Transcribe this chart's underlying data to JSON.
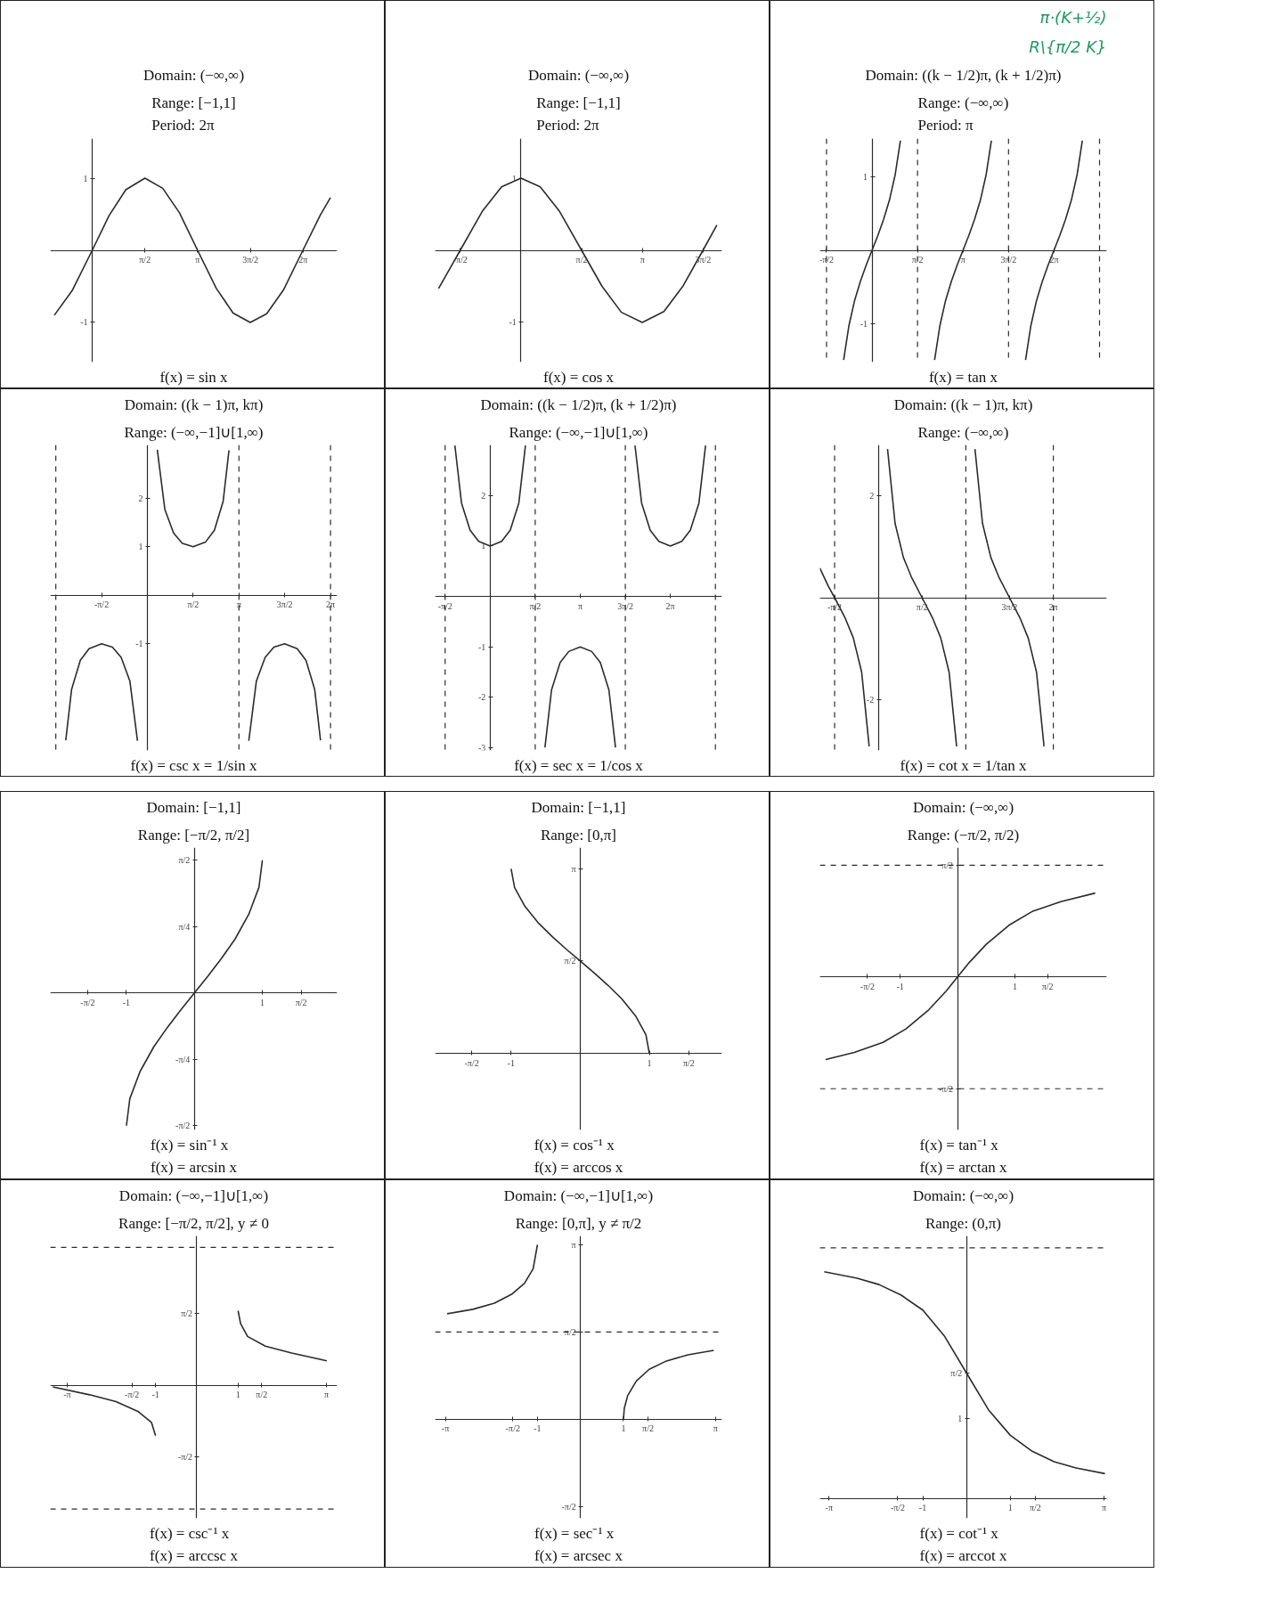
{
  "chart_data": [
    {
      "type": "line",
      "title": "Domain: (−∞,∞)",
      "subtitle": "Range: [−1,1]\nPeriod: 2π",
      "xlabel": "f(x) = sin x",
      "xlim": [
        -1.25,
        7.3
      ],
      "ylim": [
        -1.55,
        1.55
      ],
      "xticks": [
        {
          "value": 1.5708,
          "label": "π/2"
        },
        {
          "value": 3.1416,
          "label": "π"
        },
        {
          "value": 4.7124,
          "label": "3π/2"
        },
        {
          "value": 6.2832,
          "label": "2π"
        }
      ],
      "yticks": [
        1,
        -1
      ],
      "series": [
        {
          "color": "#2b2b2b",
          "x": [
            -1.13,
            -0.6,
            0,
            0.5,
            1.0,
            1.57,
            2.1,
            2.6,
            3.14,
            3.7,
            4.2,
            4.71,
            5.2,
            5.7,
            6.28,
            6.8,
            7.1
          ],
          "values": [
            -0.9,
            -0.56,
            0,
            0.48,
            0.84,
            1,
            0.86,
            0.52,
            0,
            -0.53,
            -0.87,
            -1,
            -0.88,
            -0.55,
            0,
            0.49,
            0.73
          ]
        }
      ]
    },
    {
      "type": "line",
      "title": "Domain: (−∞,∞)",
      "subtitle": "Range: [−1,1]\nPeriod: 2π",
      "xlabel": "f(x) = cos x",
      "xlim": [
        -2.22,
        5.2
      ],
      "ylim": [
        -1.55,
        1.55
      ],
      "xticks": [
        {
          "value": -1.5708,
          "label": "-π/2"
        },
        {
          "value": 1.5708,
          "label": "π/2"
        },
        {
          "value": 3.1416,
          "label": "π"
        },
        {
          "value": 4.7124,
          "label": "3π/2"
        }
      ],
      "yticks": [
        1,
        -1
      ],
      "series": [
        {
          "color": "#2b2b2b",
          "x": [
            -2.13,
            -1.57,
            -1.0,
            -0.5,
            0,
            0.5,
            1.0,
            1.57,
            2.1,
            2.6,
            3.14,
            3.7,
            4.2,
            4.71,
            5.07
          ],
          "values": [
            -0.53,
            0,
            0.54,
            0.88,
            1,
            0.88,
            0.54,
            0,
            -0.5,
            -0.86,
            -1,
            -0.85,
            -0.49,
            0,
            0.35
          ]
        }
      ]
    },
    {
      "type": "line",
      "title": "Domain: ((k − 1/2)π, (k + 1/2)π)",
      "subtitle": "Range: (−∞,∞)\nPeriod: π",
      "xlabel": "f(x) = tan x",
      "xlim": [
        -1.8,
        8.1
      ],
      "ylim": [
        -1.52,
        1.52
      ],
      "xticks": [
        {
          "value": -1.5708,
          "label": "-π/2"
        },
        {
          "value": 1.5708,
          "label": "π/2"
        },
        {
          "value": 3.1416,
          "label": "π"
        },
        {
          "value": 4.7124,
          "label": "3π/2"
        },
        {
          "value": 6.2832,
          "label": "2π"
        }
      ],
      "yticks": [
        1,
        -1
      ],
      "ref_lines": [
        {
          "axis": "x",
          "value": -1.5708,
          "line_style": "dashed"
        },
        {
          "axis": "x",
          "value": 1.5708,
          "line_style": "dashed"
        },
        {
          "axis": "x",
          "value": 4.7124,
          "line_style": "dashed"
        },
        {
          "axis": "x",
          "value": 7.854,
          "line_style": "dashed"
        }
      ],
      "annotations": [
        "π·(K+½)",
        "R\\{π/2 K}"
      ],
      "series": [
        {
          "color": "#2b2b2b",
          "x": [
            -0.98,
            -0.8,
            -0.6,
            -0.4,
            -0.2,
            0,
            0.2,
            0.4,
            0.6,
            0.8,
            0.98
          ],
          "values": [
            -1.49,
            -1.03,
            -0.68,
            -0.42,
            -0.2,
            0,
            0.2,
            0.42,
            0.68,
            1.03,
            1.49
          ]
        },
        {
          "color": "#2b2b2b",
          "x": [
            2.16,
            2.34,
            2.54,
            2.74,
            2.94,
            3.14,
            3.34,
            3.54,
            3.74,
            3.94,
            4.12
          ],
          "values": [
            -1.49,
            -1.03,
            -0.68,
            -0.42,
            -0.2,
            0,
            0.2,
            0.42,
            0.68,
            1.03,
            1.49
          ]
        },
        {
          "color": "#2b2b2b",
          "x": [
            5.3,
            5.48,
            5.68,
            5.88,
            6.08,
            6.28,
            6.48,
            6.68,
            6.88,
            7.08,
            7.26
          ],
          "values": [
            -1.49,
            -1.03,
            -0.68,
            -0.42,
            -0.2,
            0,
            0.2,
            0.42,
            0.68,
            1.03,
            1.49
          ]
        }
      ]
    },
    {
      "type": "line",
      "title": "Domain: ((k − 1)π, kπ)",
      "subtitle": "Range: (−∞,−1]∪[1,∞)",
      "xlabel": "f(x) = csc x = 1/sin x",
      "xlim": [
        -3.33,
        6.51
      ],
      "ylim": [
        -3.2,
        3.1
      ],
      "xticks": [
        {
          "value": -1.5708,
          "label": "-π/2"
        },
        {
          "value": 1.5708,
          "label": "π/2"
        },
        {
          "value": 3.1416,
          "label": "π"
        },
        {
          "value": 4.7124,
          "label": "3π/2"
        },
        {
          "value": 6.2832,
          "label": "2π"
        }
      ],
      "yticks": [
        2,
        1,
        -1
      ],
      "ref_lines": [
        {
          "axis": "x",
          "value": -3.1416,
          "line_style": "dashed"
        },
        {
          "axis": "x",
          "value": 3.1416,
          "line_style": "dashed"
        },
        {
          "axis": "x",
          "value": 6.2832,
          "line_style": "dashed"
        }
      ],
      "series": [
        {
          "color": "#2b2b2b",
          "x": [
            -2.8,
            -2.6,
            -2.3,
            -2.0,
            -1.57,
            -1.2,
            -0.9,
            -0.6,
            -0.34
          ],
          "values": [
            -2.99,
            -1.94,
            -1.34,
            -1.1,
            -1,
            -1.07,
            -1.28,
            -1.77,
            -3.0
          ]
        },
        {
          "color": "#2b2b2b",
          "x": [
            0.34,
            0.6,
            0.9,
            1.2,
            1.57,
            2.0,
            2.3,
            2.6,
            2.8
          ],
          "values": [
            3.0,
            1.77,
            1.28,
            1.07,
            1,
            1.1,
            1.34,
            1.94,
            2.99
          ]
        },
        {
          "color": "#2b2b2b",
          "x": [
            3.48,
            3.74,
            4.04,
            4.34,
            4.71,
            5.14,
            5.44,
            5.74,
            5.94
          ],
          "values": [
            -3.0,
            -1.77,
            -1.28,
            -1.07,
            -1,
            -1.1,
            -1.34,
            -1.94,
            -2.99
          ]
        }
      ]
    },
    {
      "type": "line",
      "title": "Domain: ((k − 1/2)π, (k + 1/2)π)",
      "subtitle": "Range: (−∞,−1]∪[1,∞)",
      "xlabel": "f(x) = sec x = 1/cos x",
      "xlim": [
        -1.92,
        8.08
      ],
      "ylim": [
        -3.05,
        3.0
      ],
      "xticks": [
        {
          "value": -1.5708,
          "label": "-π/2"
        },
        {
          "value": 1.5708,
          "label": "π/2"
        },
        {
          "value": 3.1416,
          "label": "π"
        },
        {
          "value": 4.7124,
          "label": "3π/2"
        },
        {
          "value": 6.2832,
          "label": "2π"
        }
      ],
      "yticks": [
        2,
        1,
        -1,
        -2,
        -3
      ],
      "ref_lines": [
        {
          "axis": "x",
          "value": -1.5708,
          "line_style": "dashed"
        },
        {
          "axis": "x",
          "value": 1.5708,
          "line_style": "dashed"
        },
        {
          "axis": "x",
          "value": 4.7124,
          "line_style": "dashed"
        },
        {
          "axis": "x",
          "value": 7.854,
          "line_style": "dashed"
        }
      ],
      "series": [
        {
          "color": "#2b2b2b",
          "x": [
            -1.23,
            -1.0,
            -0.7,
            -0.4,
            0,
            0.4,
            0.7,
            1.0,
            1.23
          ],
          "values": [
            2.99,
            1.85,
            1.31,
            1.09,
            1,
            1.09,
            1.31,
            1.85,
            2.99
          ]
        },
        {
          "color": "#2b2b2b",
          "x": [
            1.91,
            2.14,
            2.44,
            2.74,
            3.14,
            3.54,
            3.84,
            4.14,
            4.37
          ],
          "values": [
            -2.99,
            -1.85,
            -1.31,
            -1.09,
            -1,
            -1.09,
            -1.31,
            -1.85,
            -2.99
          ]
        },
        {
          "color": "#2b2b2b",
          "x": [
            5.05,
            5.28,
            5.58,
            5.88,
            6.28,
            6.68,
            6.98,
            7.28,
            7.51
          ],
          "values": [
            2.99,
            1.85,
            1.31,
            1.09,
            1,
            1.09,
            1.31,
            1.85,
            2.99
          ]
        }
      ]
    },
    {
      "type": "line",
      "title": "Domain: ((k − 1)π, kπ)",
      "subtitle": "Range: (−∞,∞)",
      "xlabel": "f(x) = cot x = 1/tan x",
      "xlim": [
        -2.1,
        8.2
      ],
      "ylim": [
        -3.0,
        3.0
      ],
      "xticks": [
        {
          "value": -1.5708,
          "label": "-π/2"
        },
        {
          "value": 1.5708,
          "label": "π/2"
        },
        {
          "value": 4.7124,
          "label": "3π/2"
        },
        {
          "value": 6.2832,
          "label": "2π"
        }
      ],
      "yticks": [
        2,
        -2
      ],
      "ref_lines": [
        {
          "axis": "x",
          "value": -1.5708,
          "line_style": "dashed"
        },
        {
          "axis": "x",
          "value": 3.1416,
          "line_style": "dashed"
        },
        {
          "axis": "x",
          "value": 6.2832,
          "line_style": "dashed"
        }
      ],
      "series": [
        {
          "color": "#2b2b2b",
          "x": [
            -2.1,
            -1.8,
            -1.57,
            -1.2,
            -0.9,
            -0.6,
            -0.33
          ],
          "values": [
            0.58,
            0.23,
            0,
            -0.39,
            -0.79,
            -1.46,
            -2.92
          ]
        },
        {
          "color": "#2b2b2b",
          "x": [
            0.33,
            0.6,
            0.9,
            1.2,
            1.57,
            1.94,
            2.24,
            2.54,
            2.81
          ],
          "values": [
            2.92,
            1.46,
            0.79,
            0.39,
            0,
            -0.39,
            -0.79,
            -1.46,
            -2.92
          ]
        },
        {
          "color": "#2b2b2b",
          "x": [
            3.47,
            3.74,
            4.04,
            4.34,
            4.71,
            5.08,
            5.38,
            5.68,
            5.95
          ],
          "values": [
            2.92,
            1.46,
            0.79,
            0.39,
            0,
            -0.39,
            -0.79,
            -1.46,
            -2.92
          ]
        }
      ]
    },
    {
      "type": "line",
      "title": "Domain: [−1,1]",
      "subtitle": "Range: [−π/2, π/2]",
      "xlabel": "f(x) = sin⁻¹ x\nf(x) = arcsin x",
      "xlim": [
        -2.12,
        2.1
      ],
      "ylim": [
        -1.62,
        1.72
      ],
      "xticks": [
        {
          "value": -1.5708,
          "label": "-π/2"
        },
        -1,
        1,
        {
          "value": 1.5708,
          "label": "π/2"
        }
      ],
      "yticks": [
        {
          "value": 1.5708,
          "label": "π/2"
        },
        {
          "value": 0.7854,
          "label": "π/4"
        },
        {
          "value": -0.7854,
          "label": "-π/4"
        },
        {
          "value": -1.5708,
          "label": "-π/2"
        }
      ],
      "series": [
        {
          "color": "#2b2b2b",
          "x": [
            -1,
            -0.95,
            -0.8,
            -0.6,
            -0.4,
            -0.2,
            0,
            0.2,
            0.4,
            0.6,
            0.8,
            0.95,
            1
          ],
          "values": [
            -1.57,
            -1.25,
            -0.93,
            -0.64,
            -0.41,
            -0.2,
            0,
            0.2,
            0.41,
            0.64,
            0.93,
            1.25,
            1.57
          ]
        }
      ]
    },
    {
      "type": "line",
      "title": "Domain: [−1,1]",
      "subtitle": "Range: [0,π]",
      "xlabel": "f(x) = cos⁻¹ x\nf(x) = arccos x",
      "xlim": [
        -2.1,
        2.05
      ],
      "ylim": [
        -1.3,
        3.5
      ],
      "xticks": [
        {
          "value": -1.5708,
          "label": "-π/2"
        },
        -1,
        1,
        {
          "value": 1.5708,
          "label": "π/2"
        }
      ],
      "yticks": [
        {
          "value": 1.5708,
          "label": "π/2"
        },
        {
          "value": 3.1416,
          "label": "π"
        }
      ],
      "series": [
        {
          "color": "#2b2b2b",
          "x": [
            -1,
            -0.95,
            -0.8,
            -0.6,
            -0.4,
            -0.2,
            0,
            0.2,
            0.4,
            0.6,
            0.8,
            0.95,
            1
          ],
          "values": [
            3.14,
            2.82,
            2.5,
            2.21,
            1.98,
            1.77,
            1.57,
            1.37,
            1.16,
            0.93,
            0.64,
            0.32,
            0
          ]
        }
      ]
    },
    {
      "type": "line",
      "title": "Domain: (−∞,∞)",
      "subtitle": "Range: (−π/2, π/2)",
      "xlabel": "f(x) = tan⁻¹ x\nf(x) = arctan x",
      "xlim": [
        -2.4,
        2.6
      ],
      "ylim": [
        -2.15,
        1.82
      ],
      "xticks": [
        {
          "value": -1.5708,
          "label": "-π/2"
        },
        -1,
        1,
        {
          "value": 1.5708,
          "label": "π/2"
        }
      ],
      "yticks": [
        {
          "value": 1.5708,
          "label": "π/2"
        },
        {
          "value": -1.5708,
          "label": "-π/2"
        }
      ],
      "ref_lines": [
        {
          "axis": "y",
          "value": 1.5708,
          "line_style": "dashed"
        },
        {
          "axis": "y",
          "value": -1.5708,
          "line_style": "dashed"
        }
      ],
      "series": [
        {
          "color": "#2b2b2b",
          "x": [
            -2.3,
            -1.8,
            -1.3,
            -0.9,
            -0.5,
            -0.2,
            0,
            0.2,
            0.5,
            0.9,
            1.3,
            1.8,
            2.4
          ],
          "values": [
            -1.16,
            -1.06,
            -0.92,
            -0.73,
            -0.46,
            -0.2,
            0,
            0.2,
            0.46,
            0.73,
            0.92,
            1.06,
            1.18
          ]
        }
      ]
    },
    {
      "type": "line",
      "title": "Domain: (−∞,−1]∪[1,∞)",
      "subtitle": "Range: [−π/2, π/2], y ≠ 0",
      "xlabel": "f(x) = csc⁻¹ x\nf(x) = arccsc x",
      "xlim": [
        -3.55,
        3.4
      ],
      "ylim": [
        -2.9,
        3.25
      ],
      "xticks": [
        {
          "value": -3.1416,
          "label": "-π"
        },
        {
          "value": -1.5708,
          "label": "-π/2"
        },
        -1,
        1,
        {
          "value": 1.5708,
          "label": "π/2"
        },
        {
          "value": 3.1416,
          "label": "π"
        }
      ],
      "yticks": [
        {
          "value": 1.5708,
          "label": "π/2"
        },
        {
          "value": -1.5708,
          "label": "-π/2"
        }
      ],
      "ref_lines": [
        {
          "axis": "y",
          "value": 3.0,
          "line_style": "dashed"
        },
        {
          "axis": "y",
          "value": -2.7,
          "line_style": "dashed"
        }
      ],
      "series": [
        {
          "color": "#2b2b2b",
          "x": [
            -3.49,
            -2.6,
            -1.96,
            -1.43,
            -1.1,
            -1.0
          ],
          "values": [
            -0.04,
            -0.21,
            -0.36,
            -0.57,
            -0.81,
            -1.1
          ]
        },
        {
          "color": "#2b2b2b",
          "x": [
            1.0,
            1.06,
            1.23,
            1.66,
            2.3,
            3.15
          ],
          "values": [
            1.62,
            1.34,
            1.06,
            0.85,
            0.7,
            0.53
          ]
        }
      ]
    },
    {
      "type": "line",
      "title": "Domain: (−∞,−1]∪[1,∞)",
      "subtitle": "Range: [0,π], y ≠ π/2",
      "xlabel": "f(x) = sec⁻¹ x\nf(x) = arcsec x",
      "xlim": [
        -3.38,
        3.29
      ],
      "ylim": [
        -1.78,
        3.3
      ],
      "xticks": [
        {
          "value": -3.1416,
          "label": "-π"
        },
        {
          "value": -1.5708,
          "label": "-π/2"
        },
        -1,
        1,
        {
          "value": 1.5708,
          "label": "π/2"
        },
        {
          "value": 3.1416,
          "label": "π"
        }
      ],
      "yticks": [
        {
          "value": 3.1416,
          "label": "π"
        },
        {
          "value": 1.5708,
          "label": "π/2"
        },
        {
          "value": -1.5708,
          "label": "-π/2"
        }
      ],
      "ref_lines": [
        {
          "axis": "y",
          "value": 1.5708,
          "line_style": "dashed"
        }
      ],
      "series": [
        {
          "color": "#2b2b2b",
          "x": [
            -3.1,
            -2.5,
            -2.0,
            -1.6,
            -1.3,
            -1.1,
            -1.0
          ],
          "values": [
            1.9,
            1.98,
            2.09,
            2.25,
            2.45,
            2.71,
            3.14
          ]
        },
        {
          "color": "#2b2b2b",
          "x": [
            1.0,
            1.02,
            1.1,
            1.3,
            1.6,
            2.0,
            2.5,
            3.1
          ],
          "values": [
            0,
            0.2,
            0.43,
            0.69,
            0.9,
            1.05,
            1.16,
            1.24
          ]
        }
      ]
    },
    {
      "type": "line",
      "title": "Domain: (−∞,∞)",
      "subtitle": "Range: (0,π)",
      "xlabel": "f(x) = cot⁻¹ x\nf(x) = arccot x",
      "xlim": [
        -3.35,
        3.2
      ],
      "ylim": [
        -0.25,
        3.29
      ],
      "xticks": [
        {
          "value": -3.1416,
          "label": "-π"
        },
        {
          "value": -1.5708,
          "label": "-π/2"
        },
        -1,
        1,
        {
          "value": 1.5708,
          "label": "π/2"
        },
        {
          "value": 3.1416,
          "label": "π"
        }
      ],
      "yticks": [
        {
          "value": 1.5708,
          "label": "π/2"
        },
        1
      ],
      "ref_lines": [
        {
          "axis": "y",
          "value": 3.1416,
          "line_style": "dashed"
        }
      ],
      "series": [
        {
          "color": "#2b2b2b",
          "x": [
            -3.25,
            -2.5,
            -2.0,
            -1.5,
            -1.0,
            -0.5,
            0,
            0.5,
            1.0,
            1.5,
            2.0,
            2.5,
            3.16
          ],
          "values": [
            2.84,
            2.76,
            2.68,
            2.55,
            2.36,
            2.03,
            1.57,
            1.11,
            0.79,
            0.59,
            0.46,
            0.38,
            0.31
          ]
        }
      ]
    }
  ]
}
